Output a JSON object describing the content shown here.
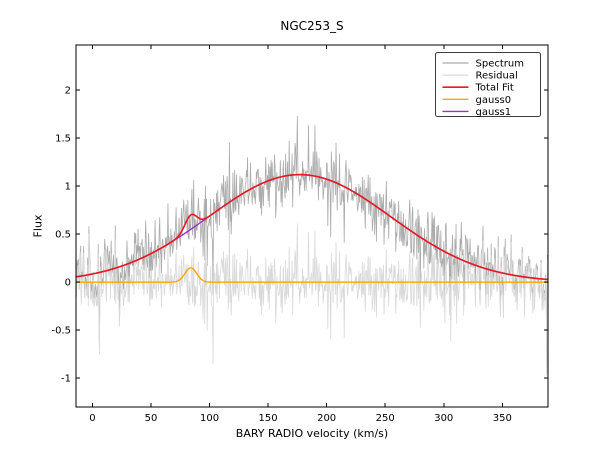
{
  "chart_data": {
    "type": "line",
    "title": "NGC253_S",
    "xlabel": "BARY RADIO velocity (km/s)",
    "ylabel": "Flux",
    "xlim": [
      -14,
      389
    ],
    "ylim": [
      -1.3,
      2.47
    ],
    "xticks": [
      0,
      50,
      100,
      150,
      200,
      250,
      300,
      350
    ],
    "xtick_labels": [
      "0",
      "50",
      "100",
      "150",
      "200",
      "250",
      "300",
      "350"
    ],
    "yticks": [
      -1,
      -0.5,
      0,
      0.5,
      1,
      1.5,
      2
    ],
    "ytick_labels": [
      "-1",
      "-0.5",
      "0",
      "0.5",
      "1",
      "1.5",
      "2"
    ],
    "grid": false,
    "legend_position": "upper-right",
    "series": [
      {
        "name": "Spectrum",
        "color": "#ababab",
        "width": 0.8,
        "kind": "fit_plus_noise"
      },
      {
        "name": "Residual",
        "color": "#d9d9d9",
        "width": 0.8,
        "kind": "noise"
      },
      {
        "name": "Total Fit",
        "color": "#e8191d",
        "width": 1.6,
        "kind": "total"
      },
      {
        "name": "gauss0",
        "color": "#ffa500",
        "width": 1.4,
        "kind": "gauss0"
      },
      {
        "name": "gauss1",
        "color": "#9932cc",
        "width": 1.4,
        "kind": "gauss1"
      }
    ],
    "draw_order": [
      "fit_plus_noise",
      "noise",
      "gauss1",
      "gauss0",
      "total"
    ],
    "components": {
      "gauss0": {
        "amp": 0.15,
        "center": 84,
        "sigma": 5
      },
      "gauss1": {
        "amp": 1.12,
        "center": 177,
        "sigma": 78
      }
    },
    "total_fit_peak": {
      "velocity": 177,
      "flux": 1.12
    },
    "noise": {
      "std": 0.175,
      "step": 0.5,
      "seed": 77,
      "spikes": [
        {
          "v": 6,
          "value": -0.75
        },
        {
          "v": 103,
          "value": -0.85
        },
        {
          "v": 215,
          "value": -0.58
        },
        {
          "v": 388,
          "value": -0.97
        }
      ]
    }
  }
}
